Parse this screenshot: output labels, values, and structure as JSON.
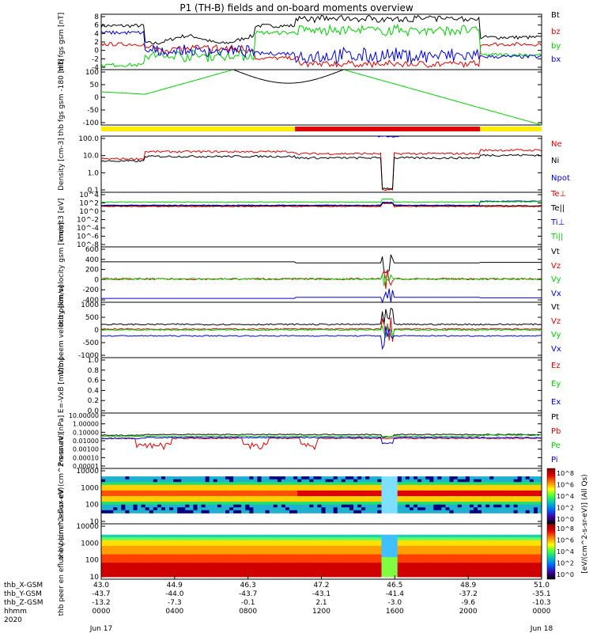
{
  "title": "P1 (TH-B) fields and on-board moments overview",
  "ephemeris": {
    "row_labels": [
      "thb_X-GSM",
      "thb_Y-GSM",
      "thb_Z-GSM",
      "hhmm",
      "2020"
    ],
    "columns": [
      {
        "x": "43.0",
        "y": "-43.7",
        "z": "-13.2",
        "hhmm": "0000",
        "date": "Jun 17"
      },
      {
        "x": "44.9",
        "y": "-44.0",
        "z": "-7.3",
        "hhmm": "0400",
        "date": ""
      },
      {
        "x": "46.3",
        "y": "-43.7",
        "z": "-0.1",
        "hhmm": "0800",
        "date": ""
      },
      {
        "x": "47.2",
        "y": "-43.1",
        "z": "2.1",
        "hhmm": "1200",
        "date": ""
      },
      {
        "x": "46.5",
        "y": "-41.4",
        "z": "-3.0",
        "hhmm": "1600",
        "date": ""
      },
      {
        "x": "48.9",
        "y": "-37.2",
        "z": "-9.6",
        "hhmm": "2000",
        "date": ""
      },
      {
        "x": "51.0",
        "y": "-35.1",
        "z": "-10.3",
        "hhmm": "0000",
        "date": "Jun 18"
      }
    ]
  },
  "colorbar": {
    "label": "[eV/(cm^2-s-sr-eV)] (All Qs)",
    "ticks_top": [
      "10^8",
      "10^6",
      "10^4",
      "10^2",
      "10^0"
    ],
    "ticks_bottom": [
      "10^8",
      "10^6",
      "10^4",
      "10^2",
      "10^0"
    ]
  },
  "chart_data": [
    {
      "type": "line",
      "id": "fgs-gsm",
      "ylabel": "thb fgs gsm [nT]",
      "yticks": [
        "8",
        "6",
        "4",
        "2",
        "0",
        "-2",
        "-4"
      ],
      "ylim": [
        -4,
        8
      ],
      "series": [
        {
          "name": "Bt",
          "color": "#000000"
        },
        {
          "name": "bz",
          "color": "#e00000"
        },
        {
          "name": "by",
          "color": "#00d000"
        },
        {
          "name": "bx",
          "color": "#0000e0"
        }
      ]
    },
    {
      "type": "line",
      "id": "fgs-theta",
      "ylabel": "thb fgs gsm -180 [nT]",
      "yticks": [
        "100",
        "50",
        "0",
        "-50",
        "-100"
      ],
      "ylim": [
        -125,
        100
      ],
      "series": [
        {
          "name": "",
          "color": "#000000"
        },
        {
          "name": "",
          "color": "#00d000"
        }
      ]
    },
    {
      "type": "line",
      "id": "density",
      "ylabel": "Density [cm-3]",
      "yticks": [
        "100.0",
        "10.0",
        "1.0",
        "0.1"
      ],
      "scale": "log",
      "series": [
        {
          "name": "Ne",
          "color": "#e00000"
        },
        {
          "name": "Ni",
          "color": "#000000"
        },
        {
          "name": "Npot",
          "color": "#0000e0"
        }
      ]
    },
    {
      "type": "line",
      "id": "temperature",
      "ylabel": "momt3 [eV]",
      "yticks": [
        "10^4",
        "10^2",
        "10^0",
        "10^-2",
        "10^-4",
        "10^-6",
        "10^-8"
      ],
      "scale": "log",
      "series": [
        {
          "name": "Te⊥",
          "color": "#e00000"
        },
        {
          "name": "Te||",
          "color": "#000000"
        },
        {
          "name": "Ti⊥",
          "color": "#0000e0"
        },
        {
          "name": "Ti||",
          "color": "#00d000"
        }
      ]
    },
    {
      "type": "line",
      "id": "peim-velocity",
      "ylabel": "thb peim velocity gsm [km/s]",
      "yticks": [
        "600",
        "400",
        "200",
        "0",
        "-200",
        "-400"
      ],
      "ylim": [
        -400,
        600
      ],
      "series": [
        {
          "name": "Vt",
          "color": "#000000"
        },
        {
          "name": "Vz",
          "color": "#e00000"
        },
        {
          "name": "Vy",
          "color": "#00d000"
        },
        {
          "name": "Vx",
          "color": "#0000e0"
        }
      ]
    },
    {
      "type": "line",
      "id": "peem-velocity",
      "ylabel": "thb peem velocity [km/s]",
      "yticks": [
        "1000",
        "500",
        "0",
        "-500",
        "-1000"
      ],
      "ylim": [
        -1500,
        1500
      ],
      "series": [
        {
          "name": "Vt",
          "color": "#000000"
        },
        {
          "name": "Vz",
          "color": "#e00000"
        },
        {
          "name": "Vy",
          "color": "#00d000"
        },
        {
          "name": "Vx",
          "color": "#0000e0"
        }
      ]
    },
    {
      "type": "line",
      "id": "efield",
      "ylabel": "E=-VxB [mV/m]",
      "yticks": [
        "1.0",
        "0.8",
        "0.6",
        "0.4",
        "0.2",
        "0.0"
      ],
      "ylim": [
        0,
        1
      ],
      "series": [
        {
          "name": "Ez",
          "color": "#e00000"
        },
        {
          "name": "Ey",
          "color": "#00d000"
        },
        {
          "name": "Ex",
          "color": "#0000e0"
        }
      ]
    },
    {
      "type": "line",
      "id": "pressure",
      "ylabel": "Pressure [nPa]",
      "yticks": [
        "10.00000",
        "1.00000",
        "0.10000",
        "0.01000",
        "0.00100",
        "0.00010",
        "0.00001"
      ],
      "scale": "log",
      "series": [
        {
          "name": "Pt",
          "color": "#000000"
        },
        {
          "name": "Pb",
          "color": "#e00000"
        },
        {
          "name": "Pe",
          "color": "#00d000"
        },
        {
          "name": "Pi",
          "color": "#0000e0"
        }
      ]
    },
    {
      "type": "heatmap",
      "id": "peir-spectrogram",
      "ylabel": "thb peir en eflux eV (cm^2-s-sr-eV)",
      "yticks": [
        "10000",
        "1000",
        "100",
        "10"
      ],
      "scale": "log"
    },
    {
      "type": "heatmap",
      "id": "peer-spectrogram",
      "ylabel": "thb peer en eflux eV (cm^2-s-sr-eV)",
      "yticks": [
        "10000",
        "1000",
        "100",
        "10"
      ],
      "scale": "log"
    }
  ]
}
